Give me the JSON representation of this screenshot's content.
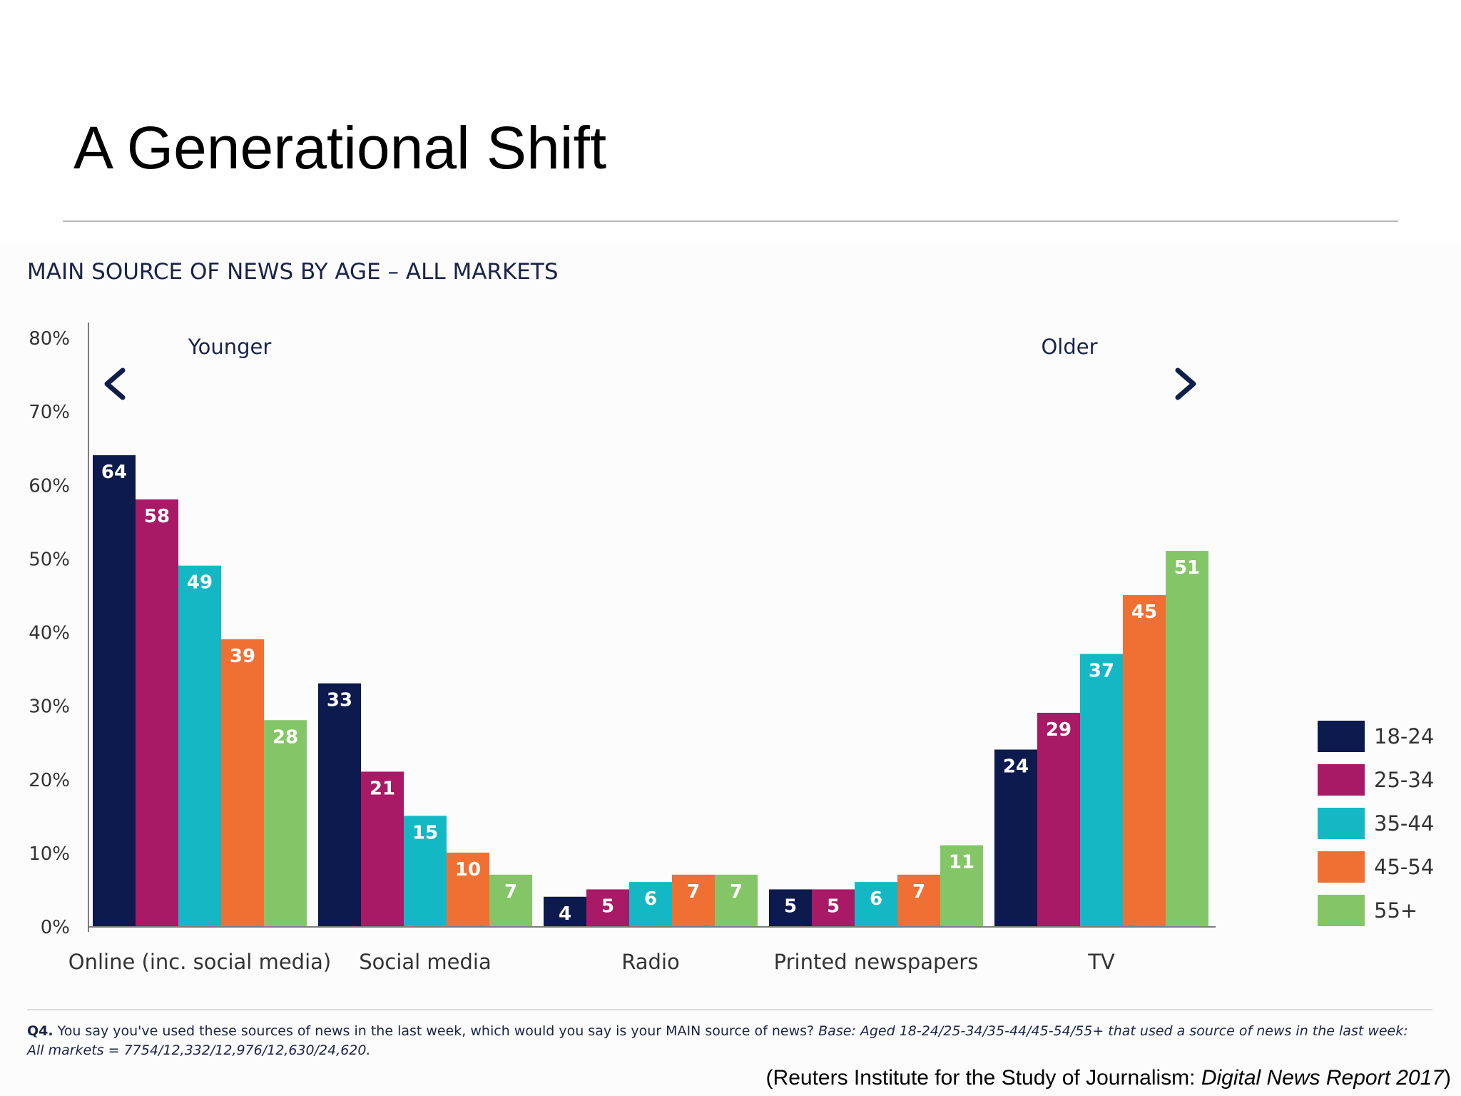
{
  "slide": {
    "title": "A Generational Shift",
    "source_prefix": "(Reuters Institute for the Study of Journalism: ",
    "source_report": "Digital News Report 2017",
    "source_suffix": ")"
  },
  "footnote": {
    "question_label": "Q4.",
    "question_text": " You say you've used these sources of news in the last week, which would you say is your MAIN source of news? ",
    "base_text": "Base: Aged 18-24/25-34/35-44/45-54/55+ that used a source of news in the last week: All markets = 7754/12,332/12,976/12,630/24,620."
  },
  "annotations": {
    "younger": "Younger",
    "older": "Older"
  },
  "colors": {
    "title_text": "#1a2348",
    "axis_text": "#333333",
    "arrow_dark": "#0f1d4a",
    "arrow_light": "#1bbfc9"
  },
  "chart_data": {
    "type": "bar",
    "title": "MAIN SOURCE OF NEWS BY AGE – ALL MARKETS",
    "categories": [
      "Online (inc. social media)",
      "Social media",
      "Radio",
      "Printed newspapers",
      "TV"
    ],
    "series": [
      {
        "name": "18-24",
        "color": "#0c1a4d",
        "values": [
          64,
          33,
          4,
          5,
          24
        ]
      },
      {
        "name": "25-34",
        "color": "#a81966",
        "values": [
          58,
          21,
          5,
          5,
          29
        ]
      },
      {
        "name": "35-44",
        "color": "#13b8c4",
        "values": [
          49,
          15,
          6,
          6,
          37
        ]
      },
      {
        "name": "45-54",
        "color": "#f07034",
        "values": [
          39,
          10,
          7,
          7,
          45
        ]
      },
      {
        "name": "55+",
        "color": "#84c667",
        "values": [
          28,
          7,
          7,
          11,
          51
        ]
      }
    ],
    "ylim": [
      0,
      80
    ],
    "yticks": [
      "0%",
      "10%",
      "20%",
      "30%",
      "40%",
      "50%",
      "60%",
      "70%",
      "80%"
    ],
    "xlabel": "",
    "ylabel": "",
    "grid": false,
    "legend_position": "right"
  }
}
